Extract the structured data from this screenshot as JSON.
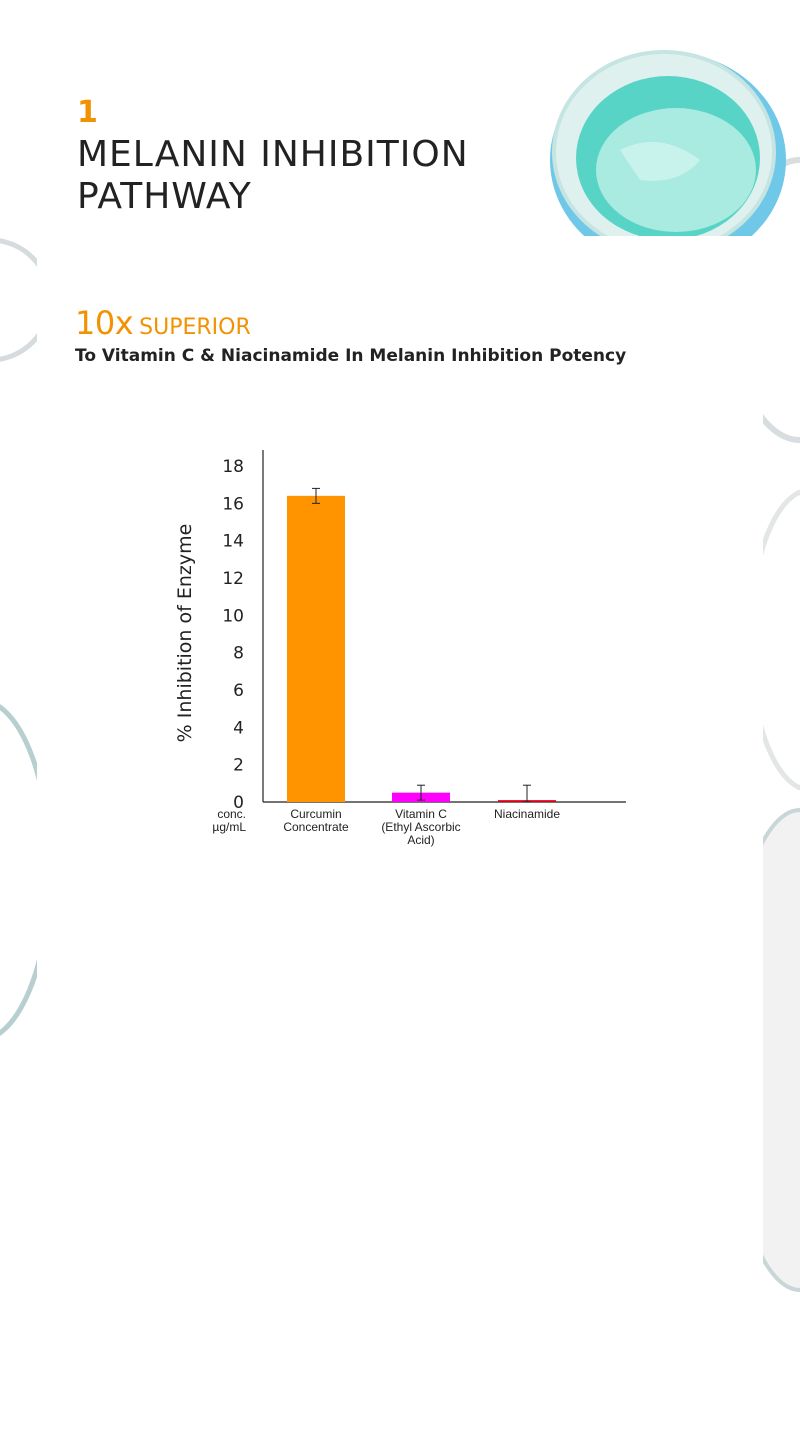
{
  "header": {
    "step_number": "1",
    "title": "MELANIN INHIBITION PATHWAY"
  },
  "claim": {
    "multiplier": "10x",
    "word": "SUPERIOR",
    "subtitle": "To Vitamin C & Niacinamide In Melanin Inhibition Potency"
  },
  "colors": {
    "accent": "#f39200",
    "curcumin": "#ff9400",
    "vitamin_c": "#ff00ff",
    "niacinamide": "#e0001a",
    "text": "#222222",
    "jar_teal": "#6fd3c9"
  },
  "chart_data": {
    "type": "bar",
    "ylabel": "% Inhibition of Enzyme",
    "xlabel_note": [
      "conc.",
      "µg/mL"
    ],
    "ylim": [
      0,
      18
    ],
    "yticks": [
      0,
      2,
      4,
      6,
      8,
      10,
      12,
      14,
      16,
      18
    ],
    "grid": false,
    "categories": [
      [
        "Curcumin",
        "Concentrate"
      ],
      [
        "Vitamin C",
        "(Ethyl Ascorbic",
        "Acid)"
      ],
      [
        "Niacinamide"
      ]
    ],
    "values": [
      16.4,
      0.5,
      0.1
    ],
    "error": [
      0.4,
      0.4,
      0.8
    ],
    "bar_colors": [
      "#ff9400",
      "#ff00ff",
      "#e0001a"
    ]
  }
}
